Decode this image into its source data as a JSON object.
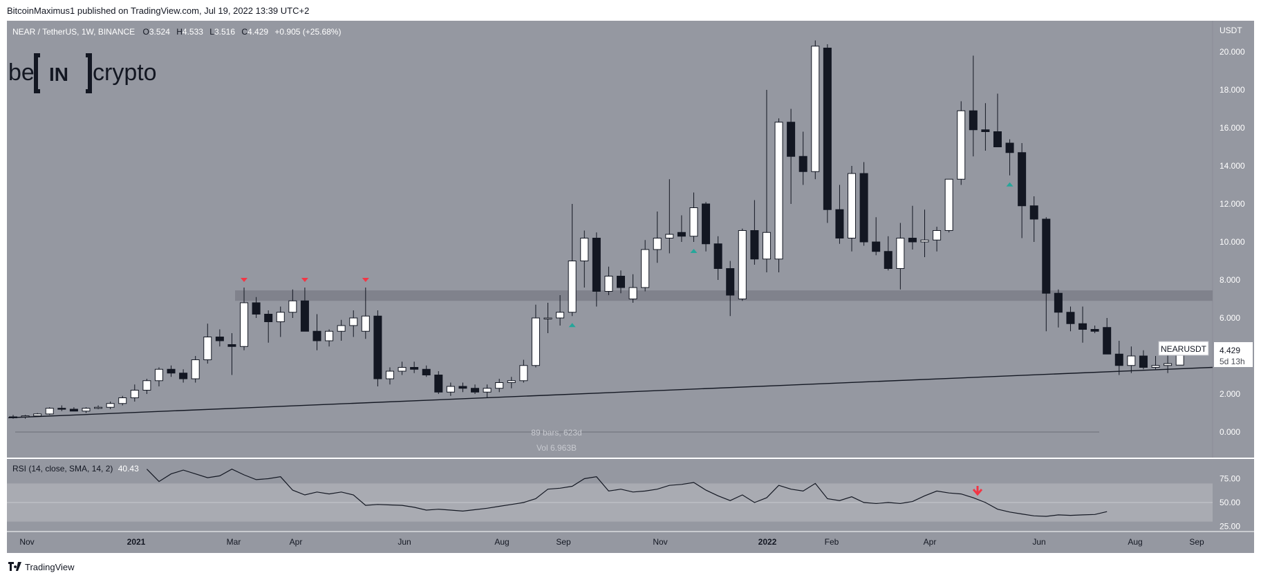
{
  "header": {
    "published": "BitcoinMaximus1 published on TradingView.com, Jul 19, 2022 13:39 UTC+2"
  },
  "legend": {
    "symbol": "NEAR / TetherUS, 1W, BINANCE",
    "o_label": "O",
    "o_value": "3.524",
    "h_label": "H",
    "h_value": "4.533",
    "l_label": "L",
    "l_value": "3.516",
    "c_label": "C",
    "c_value": "4.429",
    "change": "+0.905 (+25.68%)"
  },
  "logo": {
    "text": "becrypto"
  },
  "price_axis": {
    "unit": "USDT",
    "ticks": [
      "20.000",
      "18.000",
      "16.000",
      "14.000",
      "12.000",
      "10.000",
      "8.000",
      "6.000",
      "4.000",
      "2.000",
      "0.000"
    ]
  },
  "price_label": {
    "symbol": "NEARUSDT",
    "value": "4.429",
    "countdown": "5d 13h"
  },
  "measure": {
    "bars": "89 bars, 623d",
    "vol": "Vol 6.963B"
  },
  "rsi": {
    "legend": "RSI (14, close, SMA, 14, 2)",
    "value": "40.43",
    "ticks": [
      "75.00",
      "50.00",
      "25.00"
    ]
  },
  "time_axis": {
    "labels": [
      "Nov",
      "2021",
      "Mar",
      "Apr",
      "Jun",
      "Aug",
      "Sep",
      "Nov",
      "2022",
      "Feb",
      "Apr",
      "Jun",
      "Aug",
      "Sep"
    ]
  },
  "footer": {
    "brand": "TradingView"
  },
  "colors": {
    "background": "#9598a1",
    "bull": "#ffffff",
    "bear": "#131722",
    "zone": "#7d8089",
    "red_marker": "#f23645",
    "green_marker": "#26a69a"
  },
  "chart_data": {
    "type": "candlestick",
    "title": "NEAR / TetherUS, 1W, BINANCE",
    "ylabel": "USDT",
    "ylim": [
      0,
      20.6
    ],
    "resistance_zone": [
      6.9,
      7.45
    ],
    "ascending_support": {
      "start": 0.75,
      "end": 3.4
    },
    "red_markers_at_candle": [
      19,
      24,
      29
    ],
    "green_markers_at_candle": [
      46,
      56,
      82
    ],
    "candles": [
      [
        0.8,
        0.9,
        0.7,
        0.8
      ],
      [
        0.8,
        0.9,
        0.7,
        0.85
      ],
      [
        0.85,
        1.0,
        0.8,
        0.95
      ],
      [
        0.95,
        1.3,
        0.9,
        1.25
      ],
      [
        1.25,
        1.4,
        1.1,
        1.2
      ],
      [
        1.2,
        1.3,
        1.1,
        1.1
      ],
      [
        1.1,
        1.3,
        1.0,
        1.25
      ],
      [
        1.25,
        1.4,
        1.2,
        1.3
      ],
      [
        1.3,
        1.6,
        1.2,
        1.5
      ],
      [
        1.5,
        1.9,
        1.4,
        1.8
      ],
      [
        1.8,
        2.5,
        1.6,
        2.2
      ],
      [
        2.2,
        2.8,
        2.0,
        2.7
      ],
      [
        2.7,
        3.4,
        2.4,
        3.3
      ],
      [
        3.3,
        3.5,
        2.9,
        3.1
      ],
      [
        3.1,
        3.3,
        2.6,
        2.8
      ],
      [
        2.8,
        4.0,
        2.6,
        3.8
      ],
      [
        3.8,
        5.7,
        3.6,
        5.0
      ],
      [
        5.0,
        5.4,
        4.5,
        4.8
      ],
      [
        4.6,
        5.2,
        3.0,
        4.5
      ],
      [
        4.5,
        7.6,
        4.3,
        6.8
      ],
      [
        6.8,
        7.1,
        6.0,
        6.2
      ],
      [
        6.2,
        6.4,
        4.7,
        5.8
      ],
      [
        5.8,
        6.6,
        5.0,
        6.3
      ],
      [
        6.3,
        7.5,
        6.0,
        6.9
      ],
      [
        6.9,
        7.6,
        5.5,
        5.3
      ],
      [
        5.3,
        6.2,
        4.3,
        4.8
      ],
      [
        4.8,
        5.4,
        4.5,
        5.3
      ],
      [
        5.3,
        5.9,
        4.8,
        5.6
      ],
      [
        5.6,
        6.4,
        5.0,
        6.0
      ],
      [
        5.3,
        7.6,
        4.9,
        6.1
      ],
      [
        6.1,
        6.4,
        2.4,
        2.8
      ],
      [
        2.8,
        3.4,
        2.5,
        3.2
      ],
      [
        3.2,
        3.7,
        3.0,
        3.4
      ],
      [
        3.4,
        3.7,
        3.1,
        3.3
      ],
      [
        3.3,
        3.5,
        2.9,
        3.0
      ],
      [
        3.0,
        3.2,
        2.0,
        2.1
      ],
      [
        2.1,
        2.6,
        1.9,
        2.4
      ],
      [
        2.4,
        2.6,
        2.1,
        2.3
      ],
      [
        2.3,
        2.5,
        2.0,
        2.1
      ],
      [
        2.1,
        2.5,
        1.8,
        2.3
      ],
      [
        2.3,
        2.8,
        2.1,
        2.6
      ],
      [
        2.6,
        2.9,
        2.3,
        2.7
      ],
      [
        2.7,
        3.8,
        2.6,
        3.5
      ],
      [
        3.5,
        6.7,
        3.4,
        6.0
      ],
      [
        6.0,
        6.8,
        5.2,
        6.0
      ],
      [
        6.0,
        7.2,
        5.6,
        6.3
      ],
      [
        6.3,
        12.0,
        6.1,
        9.0
      ],
      [
        9.0,
        10.6,
        7.6,
        10.2
      ],
      [
        10.2,
        10.5,
        6.6,
        7.4
      ],
      [
        7.4,
        8.7,
        7.2,
        8.2
      ],
      [
        8.2,
        8.5,
        7.3,
        7.6
      ],
      [
        7.0,
        8.3,
        6.8,
        7.6
      ],
      [
        7.6,
        10.1,
        7.4,
        9.6
      ],
      [
        9.6,
        11.6,
        8.9,
        10.2
      ],
      [
        10.2,
        13.3,
        9.4,
        10.4
      ],
      [
        10.5,
        11.4,
        10.0,
        10.3
      ],
      [
        10.3,
        12.6,
        10.0,
        11.8
      ],
      [
        12.0,
        12.1,
        9.5,
        9.9
      ],
      [
        9.9,
        10.3,
        8.0,
        8.6
      ],
      [
        8.6,
        9.0,
        6.1,
        7.2
      ],
      [
        7.0,
        10.7,
        6.9,
        10.6
      ],
      [
        10.6,
        12.2,
        8.8,
        9.1
      ],
      [
        9.1,
        18.0,
        8.4,
        10.5
      ],
      [
        9.1,
        16.5,
        8.4,
        16.3
      ],
      [
        16.3,
        17.0,
        12.0,
        14.5
      ],
      [
        14.5,
        15.8,
        13.0,
        13.7
      ],
      [
        13.7,
        20.6,
        13.3,
        20.3
      ],
      [
        20.2,
        20.4,
        11.0,
        11.7
      ],
      [
        11.7,
        13.0,
        9.9,
        10.2
      ],
      [
        10.2,
        14.0,
        9.5,
        13.6
      ],
      [
        13.6,
        14.2,
        9.8,
        10.0
      ],
      [
        10.0,
        11.3,
        9.3,
        9.5
      ],
      [
        9.5,
        10.3,
        8.5,
        8.6
      ],
      [
        8.6,
        11.0,
        7.5,
        10.2
      ],
      [
        10.2,
        11.9,
        9.6,
        10.0
      ],
      [
        10.0,
        11.7,
        9.2,
        10.1
      ],
      [
        10.1,
        10.8,
        9.5,
        10.6
      ],
      [
        10.6,
        13.3,
        10.5,
        13.3
      ],
      [
        13.3,
        17.4,
        13.0,
        16.9
      ],
      [
        16.9,
        19.8,
        14.5,
        15.9
      ],
      [
        15.9,
        17.3,
        14.8,
        15.8
      ],
      [
        15.8,
        17.8,
        15.0,
        15.0
      ],
      [
        15.2,
        15.4,
        13.5,
        14.7
      ],
      [
        14.7,
        15.2,
        10.2,
        11.9
      ],
      [
        11.9,
        12.4,
        10.0,
        11.2
      ],
      [
        11.2,
        11.3,
        5.3,
        7.3
      ],
      [
        7.3,
        7.5,
        5.5,
        6.3
      ],
      [
        6.3,
        6.6,
        5.3,
        5.7
      ],
      [
        5.7,
        6.6,
        4.7,
        5.4
      ],
      [
        5.4,
        5.6,
        5.2,
        5.3
      ],
      [
        5.5,
        6.0,
        4.2,
        4.1
      ],
      [
        4.1,
        4.8,
        3.0,
        3.5
      ],
      [
        3.5,
        4.5,
        3.1,
        4.0
      ],
      [
        4.0,
        4.3,
        3.3,
        3.4
      ],
      [
        3.4,
        4.0,
        3.3,
        3.5
      ],
      [
        3.5,
        4.1,
        3.1,
        3.6
      ],
      [
        3.52,
        4.53,
        3.52,
        4.43
      ]
    ],
    "rsi_series": [
      85,
      72,
      80,
      84,
      80,
      76,
      78,
      85,
      79,
      74,
      75,
      77,
      63,
      58,
      61,
      59,
      61,
      58,
      47,
      48,
      47.5,
      47,
      45,
      42,
      43,
      42,
      41,
      42.5,
      44,
      46,
      48,
      50,
      54,
      64,
      65,
      67,
      75,
      77,
      62,
      64,
      61,
      62,
      64,
      68,
      69,
      71,
      63,
      57,
      52,
      58,
      50,
      55,
      68,
      64,
      62,
      70,
      54,
      52,
      56,
      50,
      49,
      50,
      49,
      51,
      57,
      62,
      60,
      59,
      55,
      50,
      43,
      40,
      38,
      36,
      35.5,
      37,
      36.5,
      37,
      37.5,
      40.43
    ],
    "rsi_ticks": [
      75,
      50,
      25
    ]
  }
}
